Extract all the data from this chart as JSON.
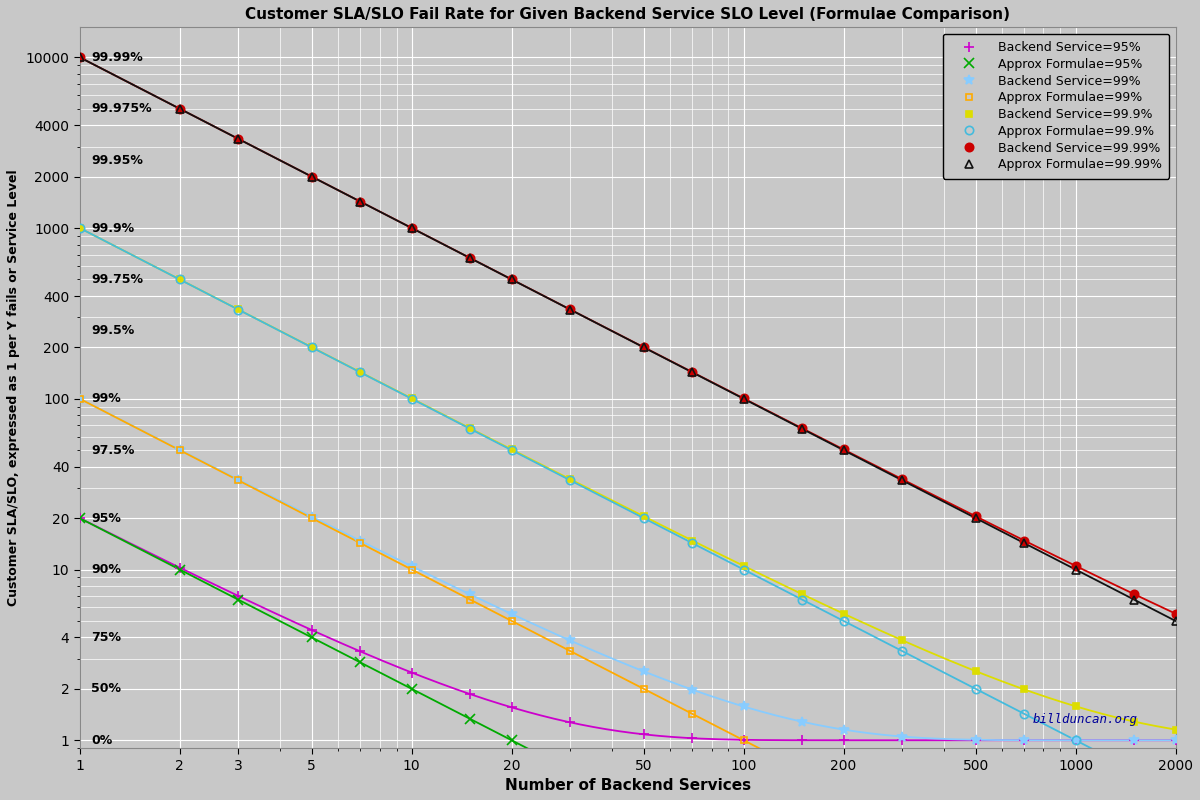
{
  "title": "Customer SLA/SLO Fail Rate for Given Backend Service SLO Level (Formulae Comparison)",
  "xlabel": "Number of Backend Services",
  "ylabel": "Customer SLA/SLO, expressed as 1 per Y fails or Service Level",
  "background_color": "#c8c8c8",
  "grid_color": "#ffffff",
  "watermark": "billduncan.org",
  "x_ticks": [
    1,
    2,
    3,
    5,
    10,
    20,
    50,
    100,
    200,
    500,
    1000,
    2000
  ],
  "y_ticks": [
    1,
    2,
    4,
    10,
    20,
    40,
    100,
    200,
    400,
    1000,
    2000,
    4000,
    10000
  ],
  "xlim": [
    1,
    2000
  ],
  "ylim": [
    0.9,
    15000
  ],
  "series": [
    {
      "label": "Backend Service=95%",
      "slo": 0.95,
      "exact": true,
      "color": "#cc00cc",
      "marker": "+",
      "markersize": 7,
      "mfc": "#cc00cc"
    },
    {
      "label": "Approx Formulae=95%",
      "slo": 0.95,
      "exact": false,
      "color": "#00aa00",
      "marker": "x",
      "markersize": 7,
      "mfc": "#00aa00"
    },
    {
      "label": "Backend Service=99%",
      "slo": 0.99,
      "exact": true,
      "color": "#88ccff",
      "marker": "*",
      "markersize": 7,
      "mfc": "#88ccff"
    },
    {
      "label": "Approx Formulae=99%",
      "slo": 0.99,
      "exact": false,
      "color": "#ffaa00",
      "marker": "s",
      "markersize": 5,
      "mfc": "none"
    },
    {
      "label": "Backend Service=99.9%",
      "slo": 0.999,
      "exact": true,
      "color": "#dddd00",
      "marker": "s",
      "markersize": 5,
      "mfc": "#dddd00"
    },
    {
      "label": "Approx Formulae=99.9%",
      "slo": 0.999,
      "exact": false,
      "color": "#44bbdd",
      "marker": "o",
      "markersize": 6,
      "mfc": "none"
    },
    {
      "label": "Backend Service=99.99%",
      "slo": 0.9999,
      "exact": true,
      "color": "#cc0000",
      "marker": "o",
      "markersize": 6,
      "mfc": "#cc0000"
    },
    {
      "label": "Approx Formulae=99.99%",
      "slo": 0.9999,
      "exact": false,
      "color": "#111111",
      "marker": "^",
      "markersize": 6,
      "mfc": "none"
    }
  ],
  "annotations": [
    {
      "text": "99.99%",
      "xn": 1.08,
      "yn": 10000.0
    },
    {
      "text": "99.975%",
      "xn": 1.08,
      "yn": 5000.0
    },
    {
      "text": "99.95%",
      "xn": 1.08,
      "yn": 2500.0
    },
    {
      "text": "99.9%",
      "xn": 1.08,
      "yn": 1000.0
    },
    {
      "text": "99.75%",
      "xn": 1.08,
      "yn": 500.0
    },
    {
      "text": "99.5%",
      "xn": 1.08,
      "yn": 250.0
    },
    {
      "text": "99%",
      "xn": 1.08,
      "yn": 100.0
    },
    {
      "text": "97.5%",
      "xn": 1.08,
      "yn": 50.0
    },
    {
      "text": "95%",
      "xn": 1.08,
      "yn": 20.0
    },
    {
      "text": "90%",
      "xn": 1.08,
      "yn": 10.0
    },
    {
      "text": "75%",
      "xn": 1.08,
      "yn": 4.0
    },
    {
      "text": "50%",
      "xn": 1.08,
      "yn": 2.0
    },
    {
      "text": "0%",
      "xn": 1.08,
      "yn": 1.0
    }
  ]
}
